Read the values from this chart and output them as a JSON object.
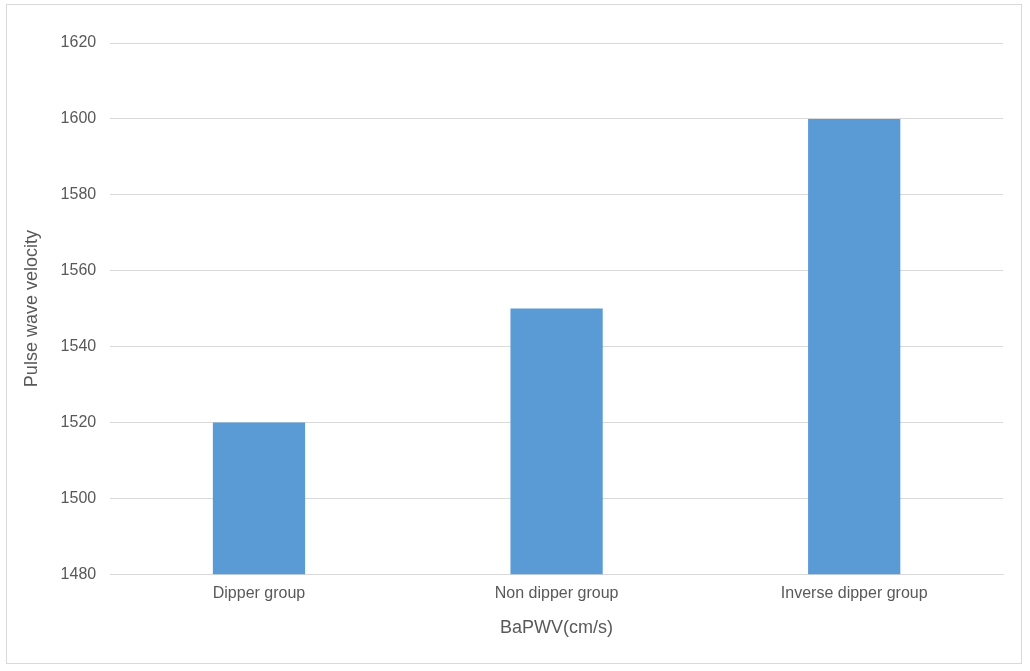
{
  "chart_data": {
    "type": "bar",
    "xlabel": "BaPWV(cm/s)",
    "ylabel": "Pulse wave velocity",
    "categories": [
      "Dipper group",
      "Non dipper group",
      "Inverse dipper group"
    ],
    "values": [
      1520,
      1550,
      1600
    ],
    "color": "#5b9bd5",
    "ylim": [
      1480,
      1620
    ],
    "yticks": [
      1480,
      1500,
      1520,
      1540,
      1560,
      1580,
      1600,
      1620
    ],
    "grid": "y",
    "legend": false
  }
}
